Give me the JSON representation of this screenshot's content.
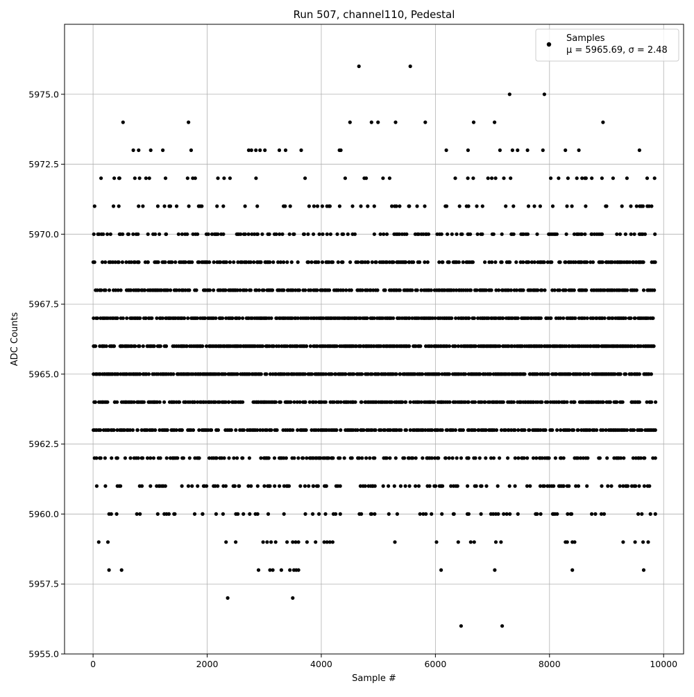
{
  "chart_data": {
    "type": "scatter",
    "title": "Run 507, channel110, Pedestal",
    "xlabel": "Sample #",
    "ylabel": "ADC Counts",
    "xlim": [
      -500,
      10350
    ],
    "ylim": [
      5955.0,
      5977.5
    ],
    "x_ticks": [
      0,
      2000,
      4000,
      6000,
      8000,
      10000
    ],
    "x_tick_labels": [
      "0",
      "2000",
      "4000",
      "6000",
      "8000",
      "10000"
    ],
    "y_ticks": [
      5955.0,
      5957.5,
      5960.0,
      5962.5,
      5965.0,
      5967.5,
      5970.0,
      5972.5,
      5975.0
    ],
    "y_tick_labels": [
      "5955.0",
      "5957.5",
      "5960.0",
      "5962.5",
      "5965.0",
      "5967.5",
      "5970.0",
      "5972.5",
      "5975.0"
    ],
    "grid": true,
    "legend": {
      "location": "top-right",
      "entries": [
        {
          "line1": "Samples",
          "line2": "μ = 5965.69, σ = 2.48"
        }
      ]
    },
    "series": [
      {
        "name": "Samples",
        "color": "#000000",
        "marker": "circle",
        "n_samples": 9850,
        "x_range": [
          0,
          9850
        ],
        "mean": 5965.69,
        "std": 2.48,
        "levels": [
          {
            "y": 5956,
            "x": [
              6450,
              7170
            ]
          },
          {
            "y": 5957,
            "x": [
              2360,
              3500
            ]
          },
          {
            "y": 5958,
            "x": [
              280,
              500,
              2900,
              3100,
              3150,
              3300,
              3450,
              3520,
              3560,
              3600,
              6100,
              7040,
              8400,
              9650
            ]
          },
          {
            "y": 5959,
            "x": [
              100,
              260,
              2330,
              2500,
              2980,
              3050,
              3120,
              3200,
              3400,
              3500,
              3550,
              3600,
              3750,
              3900,
              4050,
              4100,
              4150,
              4200,
              5290,
              6020,
              6400,
              6620,
              6680,
              7060,
              7150,
              8280,
              8310,
              8400,
              8440,
              9290,
              9500,
              9640,
              9730
            ]
          },
          {
            "y": 5976,
            "x": [
              4660,
              5560
            ]
          },
          {
            "y": 5975,
            "x": [
              7300,
              7910
            ]
          }
        ],
        "dense_levels": [
          {
            "y": 5960,
            "density": 0.16
          },
          {
            "y": 5961,
            "density": 0.25
          },
          {
            "y": 5962,
            "density": 0.35
          },
          {
            "y": 5963,
            "density": 0.55
          },
          {
            "y": 5964,
            "density": 0.65
          },
          {
            "y": 5965,
            "density": 0.75
          },
          {
            "y": 5966,
            "density": 0.75
          },
          {
            "y": 5967,
            "density": 0.7
          },
          {
            "y": 5968,
            "density": 0.55
          },
          {
            "y": 5969,
            "density": 0.4
          },
          {
            "y": 5970,
            "density": 0.28
          },
          {
            "y": 5971,
            "density": 0.18
          },
          {
            "y": 5972,
            "density": 0.07
          },
          {
            "y": 5973,
            "density": 0.03
          },
          {
            "y": 5974,
            "density": 0.015
          }
        ]
      }
    ]
  }
}
